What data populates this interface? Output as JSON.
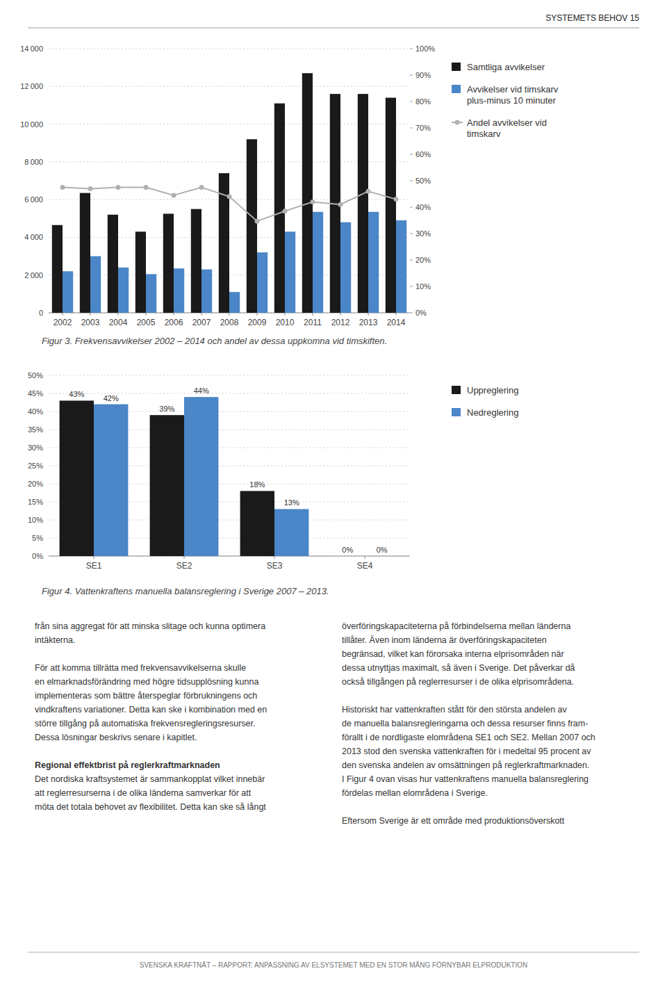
{
  "page_header": "SYSTEMETS BEHOV  15",
  "chart_data": [
    {
      "type": "bar",
      "title": "Figur 3. Frekvensavvikelser 2002 – 2014 och andel av dessa uppkomna vid timskiften.",
      "categories": [
        "2002",
        "2003",
        "2004",
        "2005",
        "2006",
        "2007",
        "2008",
        "2009",
        "2010",
        "2011",
        "2012",
        "2013",
        "2014"
      ],
      "series": [
        {
          "name": "Samtliga avvikelser",
          "type": "bar",
          "color": "#1a1a1a",
          "values": [
            4650,
            6350,
            5200,
            4300,
            5250,
            5500,
            7400,
            9200,
            11100,
            12700,
            11600,
            11600,
            11400
          ]
        },
        {
          "name": "Avvikelser vid timskarv\nplus-minus 10 minuter",
          "type": "bar",
          "color": "#4a86c8",
          "values": [
            2200,
            3000,
            2400,
            2050,
            2350,
            2300,
            1100,
            3200,
            4300,
            5350,
            4800,
            5350,
            4900
          ]
        },
        {
          "name": "Andel avvikelser vid\ntimskarv",
          "type": "line",
          "axis": "y2",
          "color": "#b0b0b0",
          "marker": "circle",
          "values": [
            0.475,
            0.47,
            0.475,
            0.475,
            0.445,
            0.475,
            0.44,
            0.347,
            0.385,
            0.42,
            0.41,
            0.46,
            0.43
          ]
        }
      ],
      "ylim": [
        0,
        14000
      ],
      "yticks": [
        0,
        {
          "value": 2000,
          "label": "2 000"
        },
        {
          "value": 4000,
          "label": "4 000"
        },
        {
          "value": 6000,
          "label": "6 000"
        },
        {
          "value": 8000,
          "label": "8 000"
        },
        {
          "value": 10000,
          "label": "10 000"
        },
        {
          "value": 12000,
          "label": "12 000"
        },
        {
          "value": 14000,
          "label": "14 000"
        }
      ],
      "y2lim": [
        0,
        1.0
      ],
      "y2ticks": [
        {
          "value": 0.0,
          "label": "0%"
        },
        {
          "value": 0.1,
          "label": "10%"
        },
        {
          "value": 0.2,
          "label": "20%"
        },
        {
          "value": 0.3,
          "label": "30%"
        },
        {
          "value": 0.4,
          "label": "40%"
        },
        {
          "value": 0.5,
          "label": "50%"
        },
        {
          "value": 0.6,
          "label": "60%"
        },
        {
          "value": 0.7,
          "label": "70%"
        },
        {
          "value": 0.8,
          "label": "80%"
        },
        {
          "value": 0.9,
          "label": "90%"
        },
        {
          "value": 1.0,
          "label": "100%"
        }
      ],
      "grid": true,
      "legend": "right"
    },
    {
      "type": "bar",
      "title": "Figur 4. Vattenkraftens manuella balansreglering i Sverige 2007 – 2013.",
      "categories": [
        "SE1",
        "SE2",
        "SE3",
        "SE4"
      ],
      "series": [
        {
          "name": "Uppreglering",
          "color": "#1a1a1a",
          "values": [
            0.43,
            0.39,
            0.18,
            0.0
          ],
          "value_labels": [
            "43%",
            "39%",
            "18%",
            "0%"
          ]
        },
        {
          "name": "Nedreglering",
          "color": "#4a86c8",
          "values": [
            0.42,
            0.44,
            0.13,
            0.0
          ],
          "value_labels": [
            "42%",
            "44%",
            "13%",
            "0%"
          ]
        }
      ],
      "ylim": [
        0,
        0.5
      ],
      "yticks": [
        {
          "value": 0.0,
          "label": "0%"
        },
        {
          "value": 0.05,
          "label": "5%"
        },
        {
          "value": 0.1,
          "label": "10%"
        },
        {
          "value": 0.15,
          "label": "15%"
        },
        {
          "value": 0.2,
          "label": "20%"
        },
        {
          "value": 0.25,
          "label": "25%"
        },
        {
          "value": 0.3,
          "label": "30%"
        },
        {
          "value": 0.35,
          "label": "35%"
        },
        {
          "value": 0.4,
          "label": "40%"
        },
        {
          "value": 0.45,
          "label": "45%"
        },
        {
          "value": 0.5,
          "label": "50%"
        }
      ],
      "grid": true,
      "legend": "right",
      "data_labels": true
    }
  ],
  "text_block": {
    "col1": [
      {
        "lines": [
          "från sina aggregat för att minska slitage och kunna optimera",
          "intäkterna."
        ]
      },
      {
        "lines": [
          "För att komma tillrätta med frekvensavvikelserna skulle",
          "en elmarknadsförändring med högre tidsupplösning kunna",
          "implementeras som bättre återspeglar förbrukningens och",
          "vindkraftens variationer. Detta kan ske i kombination med en",
          "större tillgång på automatiska frekvensregleringsresurser.",
          "Dessa lösningar beskrivs senare i kapitlet."
        ]
      },
      {
        "heading": "Regional effektbrist på reglerkraftmarknaden",
        "lines": [
          "Det nordiska kraftsystemet är sammankopplat vilket innebär",
          "att reglerresurserna i de olika länderna samverkar för att",
          "möta det totala behovet av flexibilitet. Detta kan ske så långt"
        ]
      }
    ],
    "col2": [
      {
        "lines": [
          "överföringskapaciteterna på förbindelserna mellan länderna",
          "tillåter. Även inom länderna är överföringskapaciteten",
          "begränsad, vilket kan förorsaka interna elprisområden när",
          "dessa utnyttjas maximalt, så även i Sverige. Det påverkar då",
          "också tillgången på reglerresurser i de olika elprisområdena."
        ]
      },
      {
        "lines": [
          "Historiskt har vattenkraften stått för den största andelen av",
          "de manuella balansregleringarna och dessa resurser finns fram-",
          "förallt i de nordligaste elområdena SE1 och SE2. Mellan 2007 och",
          "2013 stod den svenska vattenkraften för i medeltal 95 procent av",
          "den svenska andelen av omsättningen på reglerkraftmarknaden.",
          "I Figur 4 ovan visas hur vattenkraftens manuella balansreglering",
          "fördelas mellan elområdena i Sverige."
        ]
      },
      {
        "lines": [
          "Eftersom Sverige är ett område med produktionsöverskott"
        ]
      }
    ]
  },
  "footer": "SVENSKA KRAFTNÄT – RAPPORT: ANPASSNING AV ELSYSTEMET MED EN STOR MÄNG FÖRNYBAR ELPRODUKTION"
}
